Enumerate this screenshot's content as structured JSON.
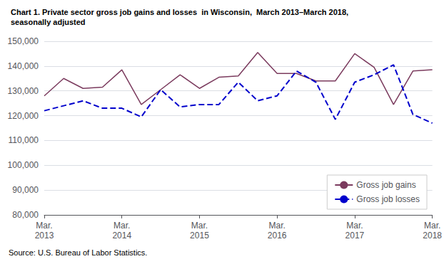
{
  "chart_data": {
    "type": "line",
    "title": "Chart 1. Private sector gross job gains and losses  in Wisconsin,  March 2013–March 2018,",
    "subtitle": "seasonally adjusted",
    "annotations": [
      "Source: U.S. Bureau of Labor Statistics."
    ],
    "categories": [
      "Mar.\n2013",
      null,
      null,
      null,
      "Mar.\n2014",
      null,
      null,
      null,
      "Mar.\n2015",
      null,
      null,
      null,
      "Mar.\n2016",
      null,
      null,
      null,
      "Mar.\n2017",
      null,
      null,
      null,
      "Mar.\n2018"
    ],
    "series": [
      {
        "name": "Gross job gains",
        "color": "#7B3B5E",
        "line_style": "solid",
        "values": [
          128000,
          135000,
          131000,
          131500,
          138500,
          124500,
          130500,
          136500,
          131000,
          135500,
          136000,
          145500,
          137000,
          137000,
          134000,
          134000,
          145000,
          139500,
          124500,
          138000,
          138500
        ]
      },
      {
        "name": "Gross job losses",
        "color": "#0000CC",
        "line_style": "dashed",
        "values": [
          122000,
          124000,
          126000,
          123000,
          123000,
          119500,
          130500,
          123500,
          124500,
          124500,
          133500,
          126000,
          128000,
          138000,
          133500,
          118500,
          133500,
          136500,
          140500,
          120500,
          117000
        ]
      }
    ],
    "ylim": [
      80000,
      150000
    ],
    "yticks": [
      {
        "value": 80000,
        "label": "80,000"
      },
      {
        "value": 90000,
        "label": "90,000"
      },
      {
        "value": 100000,
        "label": "100,000"
      },
      {
        "value": 110000,
        "label": "110,000"
      },
      {
        "value": 120000,
        "label": "120,000"
      },
      {
        "value": 130000,
        "label": "130,000"
      },
      {
        "value": 140000,
        "label": "140,000"
      },
      {
        "value": 150000,
        "label": "150,000"
      }
    ],
    "grid": true,
    "legend": "lower right"
  }
}
